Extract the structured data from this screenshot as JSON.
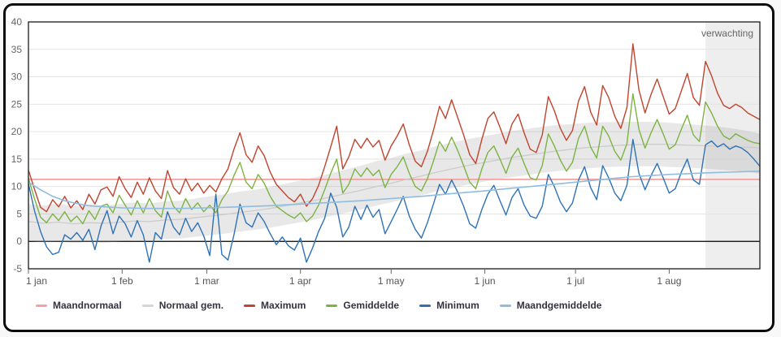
{
  "chart_data": {
    "type": "line",
    "title": "",
    "forecast": {
      "label": "verwachting",
      "start_day": 224,
      "end_day": 242,
      "fill": "#eeeeee",
      "label_color": "#666666"
    },
    "x_axis": {
      "range_days": [
        0,
        242
      ],
      "ticks": [
        {
          "day": 0,
          "label": "1 jan"
        },
        {
          "day": 31,
          "label": "1 feb"
        },
        {
          "day": 59,
          "label": "1 mar"
        },
        {
          "day": 90,
          "label": "1 apr"
        },
        {
          "day": 120,
          "label": "1 may"
        },
        {
          "day": 151,
          "label": "1 jun"
        },
        {
          "day": 181,
          "label": "1 jul"
        },
        {
          "day": 212,
          "label": "1 aug"
        }
      ]
    },
    "y_axis": {
      "min": -5,
      "max": 40,
      "tick_step": 5,
      "ticks": [
        40,
        35,
        30,
        25,
        20,
        15,
        10,
        5,
        0,
        -5
      ],
      "zero_line_color": "#000000",
      "grid_color": "#e4e4e4"
    },
    "band": {
      "name": "normal-range",
      "fill": "rgba(150,150,150,0.22)",
      "days": [
        0,
        5,
        10,
        15,
        20,
        25,
        30,
        35,
        40,
        45,
        50,
        55,
        60,
        65,
        70,
        75,
        80,
        85,
        90,
        95,
        100,
        105,
        110,
        115,
        120,
        125,
        130,
        135,
        140,
        145,
        150,
        155,
        160,
        165,
        170,
        175,
        180,
        185,
        190,
        195,
        200,
        205,
        210,
        215,
        220,
        225,
        230,
        235,
        240,
        242
      ],
      "upper": [
        6.8,
        6.5,
        6.9,
        6.4,
        6.7,
        6.5,
        6.8,
        7.1,
        6.9,
        7.3,
        7.4,
        7.8,
        8.2,
        8.6,
        9.1,
        9.4,
        9.9,
        10.5,
        11.1,
        11.7,
        12.4,
        13.1,
        13.8,
        14.6,
        15.2,
        16.0,
        16.6,
        17.4,
        18.0,
        18.6,
        19.1,
        19.6,
        20.1,
        20.5,
        20.9,
        21.2,
        21.4,
        21.6,
        21.7,
        21.8,
        21.8,
        21.8,
        21.7,
        21.5,
        21.3,
        21.1,
        20.8,
        20.4,
        19.9,
        19.6
      ],
      "lower": [
        0.1,
        -0.2,
        0.0,
        -0.3,
        -0.1,
        -0.3,
        0.0,
        0.2,
        0.1,
        0.4,
        0.5,
        0.8,
        1.1,
        1.4,
        1.8,
        2.1,
        2.5,
        3.0,
        3.5,
        4.0,
        4.6,
        5.2,
        5.8,
        6.5,
        7.1,
        7.8,
        8.4,
        9.1,
        9.7,
        10.3,
        10.8,
        11.3,
        11.7,
        12.1,
        12.5,
        12.8,
        13.1,
        13.3,
        13.5,
        13.6,
        13.7,
        13.7,
        13.6,
        13.5,
        13.4,
        13.2,
        13.0,
        12.8,
        12.5,
        12.3
      ]
    },
    "series": [
      {
        "name": "Maandnormaal",
        "color": "#f2a3a1",
        "width": 1.7,
        "constant": true,
        "value": 11.3
      },
      {
        "name": "Normaal gem.",
        "color": "#cccccc",
        "width": 1.3,
        "days": [
          0,
          5,
          10,
          15,
          20,
          25,
          30,
          35,
          40,
          45,
          50,
          55,
          60,
          65,
          70,
          75,
          80,
          85,
          90,
          95,
          100,
          105,
          110,
          115,
          120,
          125,
          130,
          135,
          140,
          145,
          150,
          155,
          160,
          165,
          170,
          175,
          180,
          185,
          190,
          195,
          200,
          205,
          210,
          215,
          220,
          225,
          230,
          235,
          240,
          242
        ],
        "values": [
          3.6,
          3.3,
          3.5,
          3.2,
          3.4,
          3.3,
          3.5,
          3.7,
          3.6,
          3.9,
          4.0,
          4.3,
          4.6,
          4.9,
          5.3,
          5.6,
          6.0,
          6.5,
          7.0,
          7.5,
          8.1,
          8.7,
          9.3,
          10.0,
          10.6,
          11.3,
          11.9,
          12.6,
          13.2,
          13.8,
          14.3,
          14.8,
          15.3,
          15.7,
          16.1,
          16.5,
          16.8,
          17.1,
          17.3,
          17.5,
          17.6,
          17.7,
          17.7,
          17.6,
          17.5,
          17.4,
          17.3,
          17.2,
          17.1,
          17.0
        ]
      },
      {
        "name": "Maximum",
        "color": "#c0442e",
        "width": 1.4,
        "day_step": 2,
        "values": [
          13.0,
          9.5,
          6.2,
          5.4,
          7.6,
          6.3,
          8.2,
          6.1,
          7.4,
          5.8,
          8.6,
          6.8,
          9.4,
          9.9,
          8.2,
          11.8,
          9.6,
          8.0,
          10.8,
          8.6,
          11.6,
          9.2,
          7.8,
          12.9,
          9.8,
          8.6,
          11.4,
          9.2,
          10.6,
          8.8,
          10.2,
          9.0,
          11.4,
          13.2,
          16.8,
          19.8,
          15.8,
          14.4,
          17.4,
          15.6,
          12.6,
          10.4,
          9.2,
          8.0,
          7.2,
          8.6,
          6.4,
          7.8,
          10.2,
          13.6,
          17.2,
          21.0,
          13.2,
          15.4,
          18.6,
          17.0,
          18.8,
          17.2,
          18.4,
          14.8,
          17.4,
          19.2,
          21.4,
          17.6,
          14.6,
          13.6,
          16.4,
          20.2,
          24.6,
          22.4,
          25.8,
          22.6,
          19.4,
          15.8,
          14.2,
          18.6,
          22.4,
          23.6,
          20.8,
          17.8,
          21.4,
          23.2,
          19.8,
          16.8,
          16.2,
          19.4,
          26.4,
          23.8,
          20.6,
          18.4,
          20.2,
          25.6,
          28.2,
          23.6,
          21.2,
          28.4,
          26.2,
          22.8,
          20.6,
          24.4,
          36.0,
          27.6,
          23.4,
          26.8,
          29.6,
          26.4,
          23.2,
          24.2,
          27.4,
          30.6,
          26.2,
          24.8,
          32.8,
          30.2,
          27.0,
          24.8,
          24.2,
          25.0,
          24.4,
          23.4,
          22.8,
          22.2
        ]
      },
      {
        "name": "Gemiddelde",
        "color": "#7db343",
        "width": 1.4,
        "day_step": 2,
        "values": [
          11.5,
          7.8,
          4.4,
          3.4,
          5.0,
          3.8,
          5.4,
          3.6,
          4.6,
          3.2,
          5.6,
          4.0,
          6.4,
          6.8,
          5.2,
          8.4,
          6.6,
          4.8,
          7.4,
          5.2,
          7.8,
          5.6,
          4.4,
          9.2,
          6.4,
          5.2,
          7.8,
          5.8,
          7.0,
          5.4,
          6.6,
          5.2,
          7.6,
          9.2,
          12.0,
          14.4,
          10.8,
          9.6,
          12.2,
          10.6,
          8.2,
          6.4,
          5.6,
          4.8,
          4.2,
          5.2,
          3.6,
          4.6,
          6.6,
          9.4,
          12.4,
          15.0,
          8.8,
          10.4,
          13.2,
          11.8,
          13.4,
          12.0,
          13.0,
          9.8,
          12.2,
          13.6,
          15.4,
          12.4,
          10.0,
          9.2,
          11.4,
          14.6,
          18.2,
          16.4,
          19.0,
          16.6,
          13.8,
          10.8,
          9.6,
          13.2,
          16.2,
          17.4,
          15.0,
          12.4,
          15.4,
          17.0,
          14.2,
          11.6,
          11.2,
          13.8,
          19.6,
          17.4,
          14.8,
          12.8,
          14.4,
          18.8,
          21.0,
          17.2,
          15.2,
          21.0,
          19.2,
          16.4,
          14.8,
          17.8,
          26.9,
          20.4,
          17.0,
          19.8,
          22.2,
          19.6,
          16.8,
          17.6,
          20.4,
          23.0,
          19.4,
          18.2,
          25.4,
          23.4,
          21.0,
          19.2,
          18.6,
          19.6,
          19.0,
          18.4,
          18.0,
          17.8
        ]
      },
      {
        "name": "Minimum",
        "color": "#2f72b5",
        "width": 1.4,
        "day_step": 2,
        "values": [
          10.5,
          5.6,
          1.8,
          -1.0,
          -2.4,
          -2.0,
          1.2,
          0.4,
          1.6,
          0.2,
          2.2,
          -1.5,
          2.8,
          5.6,
          1.4,
          4.6,
          3.2,
          0.8,
          3.8,
          1.2,
          -3.8,
          1.6,
          0.4,
          5.4,
          2.6,
          1.2,
          4.2,
          1.8,
          3.4,
          1.0,
          -2.6,
          8.6,
          -2.4,
          -3.4,
          1.2,
          6.8,
          3.4,
          2.6,
          5.2,
          3.6,
          1.4,
          -0.6,
          0.8,
          -0.8,
          -1.6,
          0.6,
          -3.8,
          -1.2,
          1.8,
          4.2,
          8.8,
          6.2,
          0.8,
          2.6,
          6.4,
          4.0,
          6.6,
          4.4,
          5.8,
          1.4,
          3.6,
          5.8,
          8.2,
          4.6,
          2.2,
          0.6,
          3.4,
          6.8,
          10.4,
          8.6,
          11.2,
          9.0,
          6.4,
          3.2,
          2.4,
          5.8,
          8.6,
          10.2,
          7.4,
          4.8,
          8.0,
          9.6,
          6.6,
          4.6,
          4.2,
          6.4,
          12.2,
          10.0,
          7.2,
          5.4,
          7.0,
          11.2,
          13.6,
          9.8,
          7.6,
          13.8,
          11.6,
          8.8,
          7.4,
          10.2,
          18.6,
          12.4,
          9.4,
          12.0,
          14.2,
          11.6,
          8.8,
          9.6,
          12.6,
          15.0,
          11.2,
          10.4,
          17.6,
          18.3,
          17.2,
          17.8,
          16.8,
          17.4,
          17.0,
          16.2,
          15.0,
          13.7
        ]
      },
      {
        "name": "Maandgemiddelde",
        "color": "#8fbcdf",
        "width": 1.6,
        "days": [
          0,
          4,
          8,
          12,
          16,
          20,
          25,
          31,
          40,
          50,
          59,
          70,
          80,
          90,
          100,
          110,
          120,
          130,
          140,
          151,
          160,
          170,
          181,
          190,
          200,
          212,
          225,
          242
        ],
        "values": [
          10.8,
          9.4,
          8.2,
          7.4,
          6.9,
          6.5,
          6.3,
          6.1,
          6.0,
          6.0,
          6.1,
          6.3,
          6.5,
          6.8,
          7.1,
          7.4,
          7.8,
          8.2,
          8.7,
          9.2,
          9.7,
          10.2,
          10.8,
          11.3,
          11.8,
          12.2,
          12.5,
          12.8
        ]
      }
    ],
    "legend": [
      {
        "label": "Maandnormaal",
        "color": "#f2a3a1"
      },
      {
        "label": "Normaal gem.",
        "color": "#d6d6d6"
      },
      {
        "label": "Maximum",
        "color": "#c0442e"
      },
      {
        "label": "Gemiddelde",
        "color": "#7db343"
      },
      {
        "label": "Minimum",
        "color": "#2f72b5"
      },
      {
        "label": "Maandgemiddelde",
        "color": "#8fbcdf"
      }
    ],
    "axis_label_color": "#555555"
  }
}
